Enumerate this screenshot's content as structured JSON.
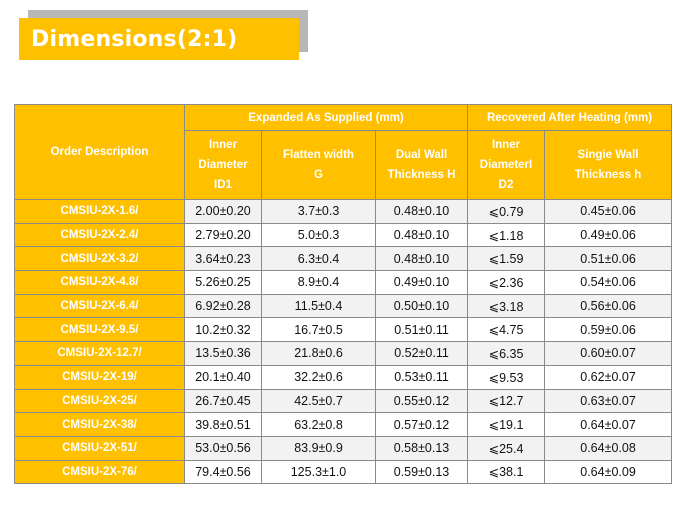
{
  "title": "Dimensions(2:1)",
  "table": {
    "order_header": "Order Description",
    "group_expanded": "Expanded As Supplied (mm)",
    "group_recovered": "Recovered After Heating (mm)",
    "columns": [
      [
        "Inner",
        "Diameter",
        "ID1"
      ],
      [
        "Flatten width",
        "G"
      ],
      [
        "Dual Wall",
        "Thickness H"
      ],
      [
        "Inner",
        "DiameterI",
        "D2"
      ],
      [
        "Singie Wall",
        "Thickness h"
      ]
    ],
    "rows": [
      [
        "CMSIU-2X-1.6/",
        "2.00±0.20",
        "3.7±0.3",
        "0.48±0.10",
        "⩽0.79",
        "0.45±0.06"
      ],
      [
        "CMSIU-2X-2.4/",
        "2.79±0.20",
        "5.0±0.3",
        "0.48±0.10",
        "⩽1.18",
        "0.49±0.06"
      ],
      [
        "CMSIU-2X-3.2/",
        "3.64±0.23",
        "6.3±0.4",
        "0.48±0.10",
        "⩽1.59",
        "0.51±0.06"
      ],
      [
        "CMSIU-2X-4.8/",
        "5.26±0.25",
        "8.9±0.4",
        "0.49±0.10",
        "⩽2.36",
        "0.54±0.06"
      ],
      [
        "CMSIU-2X-6.4/",
        "6.92±0.28",
        "11.5±0.4",
        "0.50±0.10",
        "⩽3.18",
        "0.56±0.06"
      ],
      [
        "CMSIU-2X-9.5/",
        "10.2±0.32",
        "16.7±0.5",
        "0.51±0.11",
        "⩽4.75",
        "0.59±0.06"
      ],
      [
        "CMSIU-2X-12.7/",
        "13.5±0.36",
        "21.8±0.6",
        "0.52±0.11",
        "⩽6.35",
        "0.60±0.07"
      ],
      [
        "CMSIU-2X-19/",
        "20.1±0.40",
        "32.2±0.6",
        "0.53±0.11",
        "⩽9.53",
        "0.62±0.07"
      ],
      [
        "CMSIU-2X-25/",
        "26.7±0.45",
        "42.5±0.7",
        "0.55±0.12",
        "⩽12.7",
        "0.63±0.07"
      ],
      [
        "CMSIU-2X-38/",
        "39.8±0.51",
        "63.2±0.8",
        "0.57±0.12",
        "⩽19.1",
        "0.64±0.07"
      ],
      [
        "CMSIU-2X-51/",
        "53.0±0.56",
        "83.9±0.9",
        "0.58±0.13",
        "⩽25.4",
        "0.64±0.08"
      ],
      [
        "CMSIU-2X-76/",
        "79.4±0.56",
        "125.3±1.0",
        "0.59±0.13",
        "⩽38.1",
        "0.64±0.09"
      ]
    ]
  },
  "colors": {
    "accent": "#ffc000",
    "title_shadow": "#b7b7b7",
    "row_alt": "#f2f2f2"
  }
}
